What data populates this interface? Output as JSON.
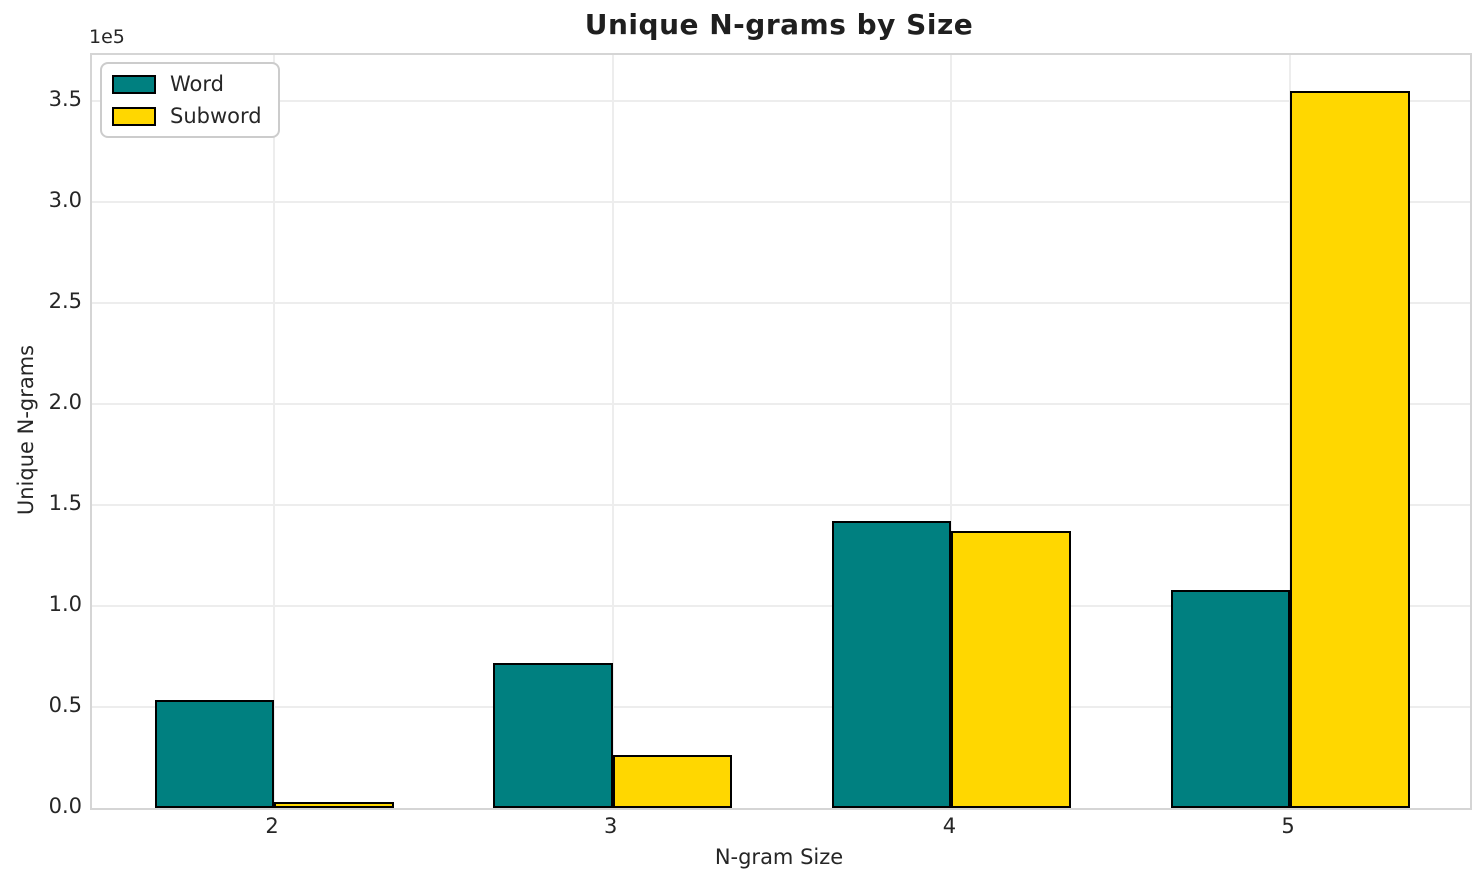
{
  "chart_data": {
    "type": "bar",
    "title": "Unique N-grams by Size",
    "xlabel": "N-gram Size",
    "ylabel": "Unique N-grams",
    "offset_text": "1e5",
    "categories": [
      "2",
      "3",
      "4",
      "5"
    ],
    "series": [
      {
        "name": "Word",
        "color": "#008080",
        "values": [
          53500,
          72000,
          142000,
          108000
        ]
      },
      {
        "name": "Subword",
        "color": "#FFD700",
        "values": [
          3200,
          26500,
          137000,
          355000
        ]
      }
    ],
    "y_ticks": [
      {
        "label": "0.0",
        "value": 0
      },
      {
        "label": "0.5",
        "value": 50000
      },
      {
        "label": "1.0",
        "value": 100000
      },
      {
        "label": "1.5",
        "value": 150000
      },
      {
        "label": "2.0",
        "value": 200000
      },
      {
        "label": "2.5",
        "value": 250000
      },
      {
        "label": "3.0",
        "value": 300000
      },
      {
        "label": "3.5",
        "value": 350000
      }
    ],
    "ylim": [
      0,
      373000
    ],
    "grid": true,
    "legend_position": "upper left",
    "bar_edge_color": "#000000"
  }
}
